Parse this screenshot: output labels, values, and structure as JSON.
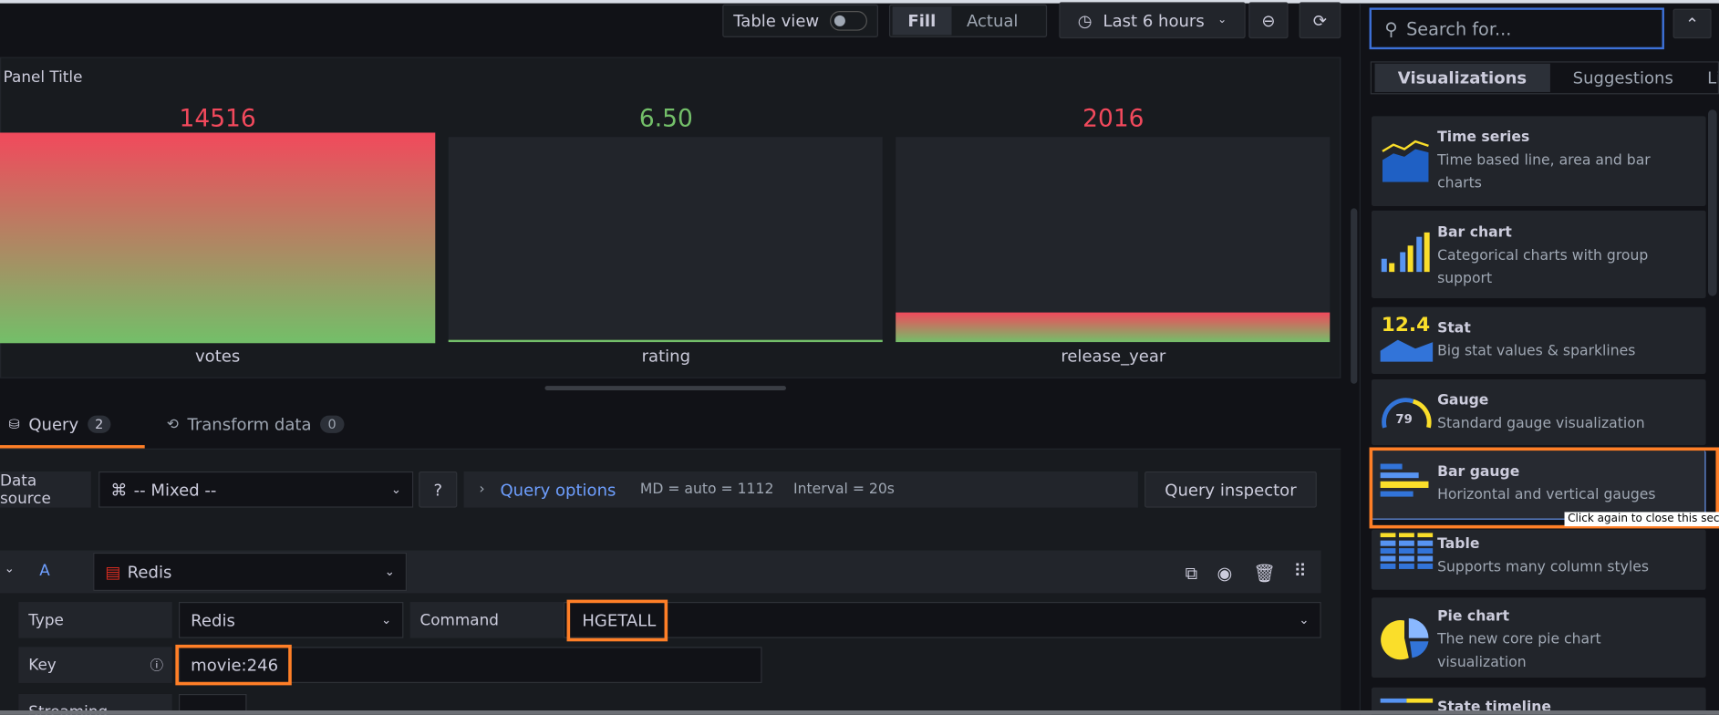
{
  "toolbar": {
    "table_view": "Table view",
    "fill": "Fill",
    "actual": "Actual",
    "time_range": "Last 6 hours"
  },
  "panel": {
    "title": "Panel Title",
    "bars": [
      {
        "name": "votes",
        "value": "14516",
        "fill_fraction": 1.0,
        "value_color": "#f2495c"
      },
      {
        "name": "rating",
        "value": "6.50",
        "fill_fraction": 0.0,
        "value_color": "#73bf69"
      },
      {
        "name": "release_year",
        "value": "2016",
        "fill_fraction": 0.14,
        "value_color": "#f2495c"
      }
    ]
  },
  "tabs": [
    {
      "label": "Query",
      "count": "2"
    },
    {
      "label": "Transform data",
      "count": "0"
    }
  ],
  "query": {
    "data_source_label": "Data source",
    "data_source": "-- Mixed --",
    "options_label": "Query options",
    "md": "MD = auto = 1112",
    "interval": "Interval = 20s",
    "inspector": "Query inspector",
    "row": {
      "ref": "A",
      "datasource": "Redis",
      "type_label": "Type",
      "type": "Redis",
      "command_label": "Command",
      "command": "HGETALL",
      "key_label": "Key",
      "key": "movie:246",
      "streaming_label": "Streaming"
    }
  },
  "viz": {
    "search_placeholder": "Search for...",
    "tabs": [
      "Visualizations",
      "Suggestions",
      "Library panels"
    ],
    "items": [
      {
        "title": "Time series",
        "desc": "Time based line, area and bar charts"
      },
      {
        "title": "Bar chart",
        "desc": "Categorical charts with group support"
      },
      {
        "title": "Stat",
        "desc": "Big stat values & sparklines",
        "icon_text": "12.4"
      },
      {
        "title": "Gauge",
        "desc": "Standard gauge visualization",
        "icon_text": "79"
      },
      {
        "title": "Bar gauge",
        "desc": "Horizontal and vertical gauges"
      },
      {
        "title": "Table",
        "desc": "Supports many column styles"
      },
      {
        "title": "Pie chart",
        "desc": "The new core pie chart visualization"
      },
      {
        "title": "State timeline",
        "desc": ""
      }
    ],
    "tooltip": "Click again to close this section"
  },
  "colors": {
    "accent": "#ff7f27",
    "link": "#6e9fff",
    "red": "#f2495c",
    "green": "#73bf69"
  }
}
